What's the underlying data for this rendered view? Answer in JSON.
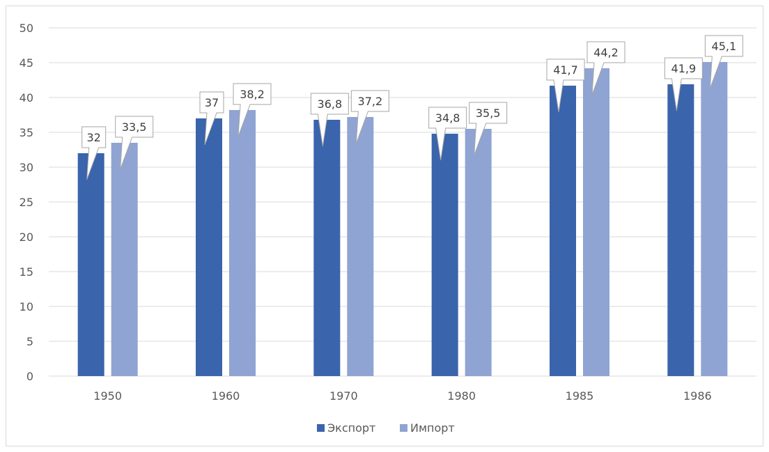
{
  "chart_data": {
    "type": "bar",
    "title": "",
    "xlabel": "",
    "ylabel": "",
    "categories": [
      "1950",
      "1960",
      "1970",
      "1980",
      "1985",
      "1986"
    ],
    "series": [
      {
        "name": "Экспорт",
        "values": [
          32,
          37,
          36.8,
          34.8,
          41.7,
          41.9
        ],
        "labels": [
          "32",
          "37",
          "36,8",
          "34,8",
          "41,7",
          "41,9"
        ],
        "color": "#3a64ab"
      },
      {
        "name": "Импорт",
        "values": [
          33.5,
          38.2,
          37.2,
          35.5,
          44.2,
          45.1
        ],
        "labels": [
          "33,5",
          "38,2",
          "37,2",
          "35,5",
          "44,2",
          "45,1"
        ],
        "color": "#8fa4d3"
      }
    ],
    "ylim": [
      0,
      50
    ],
    "yticks": [
      0,
      5,
      10,
      15,
      20,
      25,
      30,
      35,
      40,
      45,
      50
    ],
    "grid": true,
    "legend": "bottom",
    "data_labels": "callout"
  }
}
